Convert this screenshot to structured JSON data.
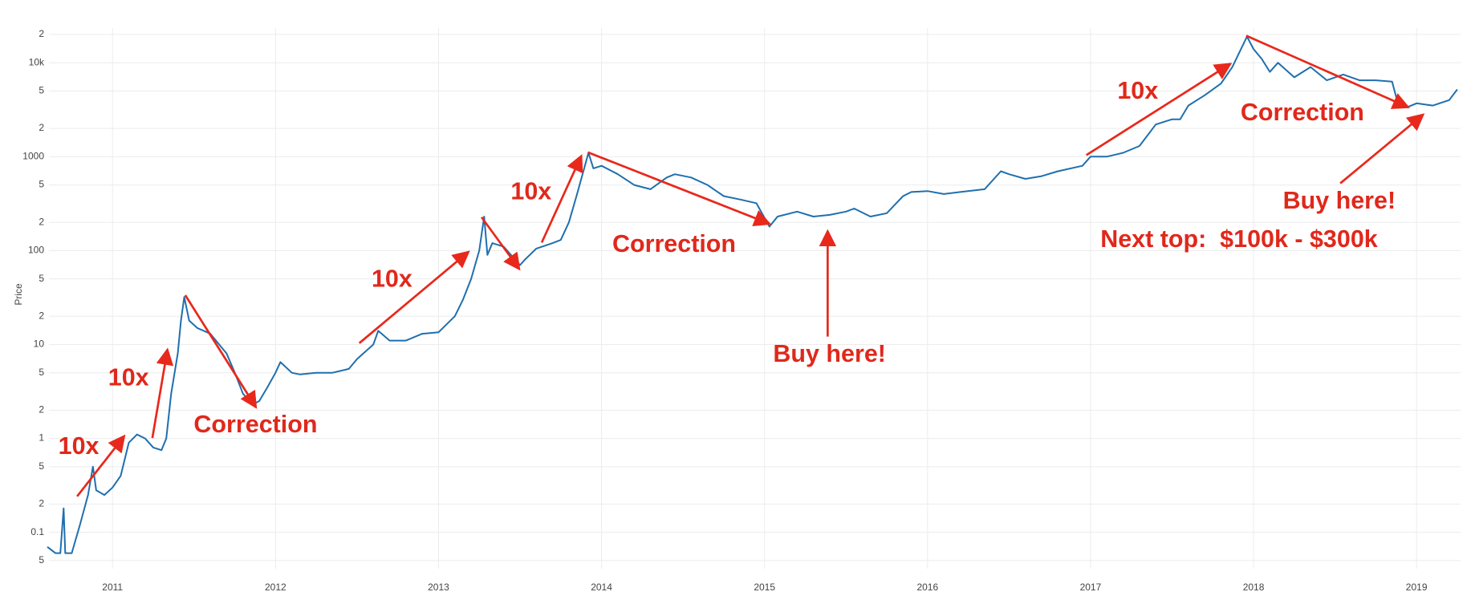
{
  "chart_data": {
    "type": "line",
    "y_label": "Price",
    "x": [
      2010.6,
      2010.65,
      2010.68,
      2010.7,
      2010.71,
      2010.75,
      2010.8,
      2010.85,
      2010.88,
      2010.9,
      2010.95,
      2011.0,
      2011.05,
      2011.1,
      2011.15,
      2011.2,
      2011.25,
      2011.3,
      2011.33,
      2011.36,
      2011.4,
      2011.42,
      2011.44,
      2011.47,
      2011.52,
      2011.6,
      2011.7,
      2011.75,
      2011.8,
      2011.86,
      2011.9,
      2011.95,
      2012.0,
      2012.03,
      2012.1,
      2012.15,
      2012.25,
      2012.35,
      2012.45,
      2012.5,
      2012.6,
      2012.63,
      2012.7,
      2012.8,
      2012.9,
      2013.0,
      2013.1,
      2013.15,
      2013.2,
      2013.25,
      2013.28,
      2013.3,
      2013.33,
      2013.4,
      2013.5,
      2013.53,
      2013.6,
      2013.7,
      2013.75,
      2013.8,
      2013.85,
      2013.92,
      2013.95,
      2014.0,
      2014.1,
      2014.2,
      2014.3,
      2014.4,
      2014.45,
      2014.55,
      2014.65,
      2014.75,
      2014.85,
      2014.95,
      2015.03,
      2015.08,
      2015.2,
      2015.3,
      2015.4,
      2015.5,
      2015.55,
      2015.65,
      2015.75,
      2015.85,
      2015.9,
      2016.0,
      2016.1,
      2016.2,
      2016.35,
      2016.45,
      2016.5,
      2016.6,
      2016.7,
      2016.8,
      2016.95,
      2017.0,
      2017.1,
      2017.2,
      2017.3,
      2017.4,
      2017.5,
      2017.55,
      2017.6,
      2017.7,
      2017.8,
      2017.87,
      2017.96,
      2018.0,
      2018.05,
      2018.1,
      2018.15,
      2018.25,
      2018.35,
      2018.45,
      2018.55,
      2018.65,
      2018.75,
      2018.85,
      2018.88,
      2018.95,
      2019.0,
      2019.1,
      2019.2,
      2019.25
    ],
    "values": [
      0.07,
      0.06,
      0.06,
      0.18,
      0.06,
      0.06,
      0.12,
      0.25,
      0.5,
      0.28,
      0.25,
      0.3,
      0.4,
      0.9,
      1.1,
      1.0,
      0.8,
      0.75,
      1.0,
      3,
      8,
      18,
      32,
      18,
      15,
      13,
      8,
      5,
      3,
      2.3,
      2.5,
      3.5,
      5,
      6.5,
      5,
      4.8,
      5,
      5,
      5.5,
      7,
      10,
      14,
      11,
      11,
      13,
      13.5,
      20,
      30,
      50,
      100,
      230,
      90,
      120,
      110,
      70,
      80,
      105,
      120,
      130,
      200,
      400,
      1100,
      750,
      800,
      650,
      500,
      450,
      600,
      650,
      600,
      500,
      380,
      350,
      320,
      180,
      230,
      260,
      230,
      240,
      260,
      280,
      230,
      250,
      380,
      420,
      430,
      400,
      420,
      450,
      700,
      650,
      580,
      620,
      700,
      800,
      1000,
      1000,
      1100,
      1300,
      2200,
      2500,
      2500,
      3500,
      4500,
      6000,
      9000,
      19000,
      14000,
      11000,
      8000,
      10000,
      7000,
      9000,
      6500,
      7500,
      6500,
      6500,
      6300,
      4000,
      3400,
      3700,
      3500,
      4000,
      5200
    ],
    "color": "#1f6fae",
    "xlim": [
      2010.61,
      2019.27
    ],
    "xticks": [
      2011,
      2012,
      2013,
      2014,
      2015,
      2016,
      2017,
      2018,
      2019
    ],
    "ylim": [
      0.041,
      23400
    ],
    "log_y": true,
    "yticks": [
      {
        "value": 0.05,
        "label": "5"
      },
      0.1,
      {
        "value": 0.2,
        "label": "2"
      },
      {
        "value": 0.5,
        "label": "5"
      },
      1,
      {
        "value": 2,
        "label": "2"
      },
      {
        "value": 5,
        "label": "5"
      },
      10,
      {
        "value": 20,
        "label": "2"
      },
      {
        "value": 50,
        "label": "5"
      },
      100,
      {
        "value": 200,
        "label": "2"
      },
      {
        "value": 500,
        "label": "5"
      },
      1000,
      {
        "value": 2000,
        "label": "2"
      },
      {
        "value": 5000,
        "label": "5"
      },
      {
        "value": 10000,
        "label": "10k"
      },
      {
        "value": 20000,
        "label": "2"
      }
    ],
    "grid": true,
    "annotations": [
      "10x",
      "10x",
      "Correction",
      "10x",
      "10x",
      "Correction",
      "Buy here!",
      "10x",
      "Correction",
      "Buy here!",
      "Next top:  $100k - $300k"
    ]
  }
}
